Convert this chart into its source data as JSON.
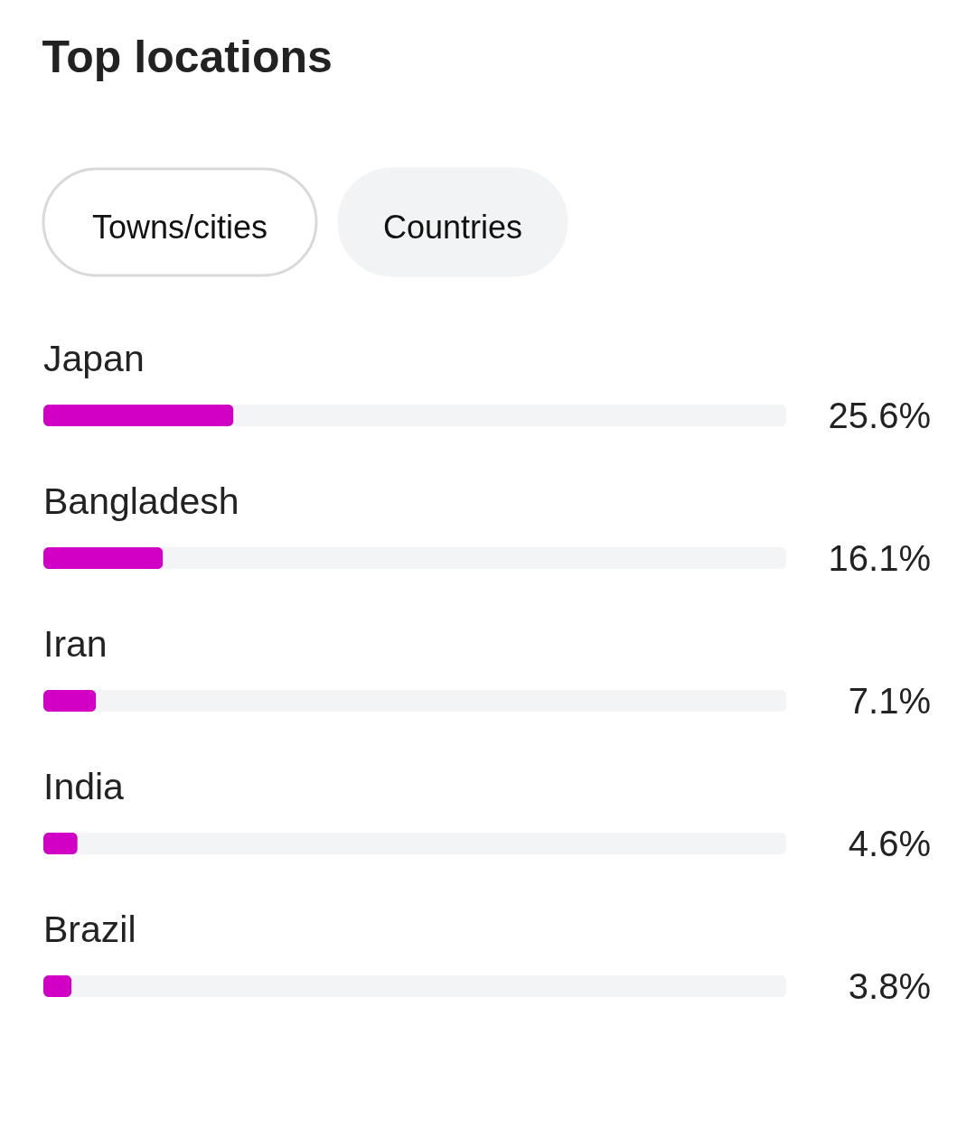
{
  "chart_data": {
    "type": "bar",
    "orientation": "horizontal",
    "title": "Top locations",
    "annotations": [
      "Towns/cities",
      "Countries"
    ],
    "categories": [
      "Japan",
      "Bangladesh",
      "Iran",
      "India",
      "Brazil"
    ],
    "values": [
      25.6,
      16.1,
      7.1,
      4.6,
      3.8
    ],
    "value_labels": [
      "25.6%",
      "16.1%",
      "7.1%",
      "4.6%",
      "3.8%"
    ],
    "color": "#d100c4",
    "xlim": [
      0,
      100
    ],
    "tick_labels": "y"
  }
}
